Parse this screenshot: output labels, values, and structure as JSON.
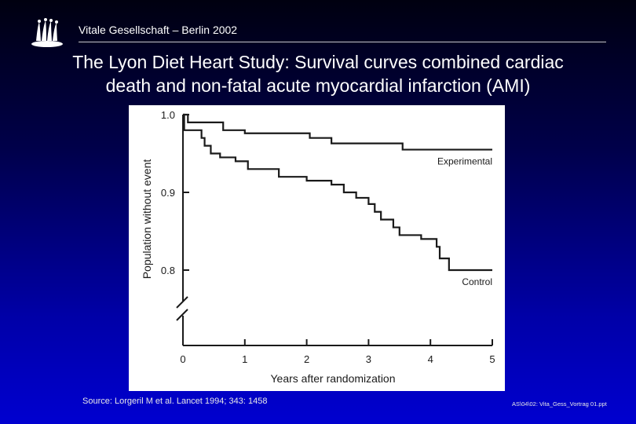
{
  "header": {
    "org": "Vitale Gesellschaft – Berlin 2002"
  },
  "title": {
    "line1": "The Lyon Diet Heart Study: Survival curves combined cardiac",
    "line2": "death and non-fatal acute myocardial infarction (AMI)"
  },
  "footer": {
    "source": "Source: Lorgeril M et al. Lancet 1994; 343: 1458",
    "fileref": "AS\\04\\02: Vita_Gess_Vortrag 01.ppt"
  },
  "colors": {
    "curve": "#1a1a1a",
    "chart_bg": "#ffffff"
  },
  "chart_data": {
    "type": "line",
    "xlabel": "Years after randomization",
    "ylabel": "Population without event",
    "x_ticks": [
      0,
      1,
      2,
      3,
      4,
      5
    ],
    "y_ticks": [
      0.8,
      0.9,
      1.0
    ],
    "y_tick_labels": [
      "0.8",
      "0.9",
      "1.0"
    ],
    "xlim": [
      0,
      5
    ],
    "ylim": [
      0.8,
      1.0
    ],
    "y_axis_break": true,
    "grid": false,
    "legend": "inline labels at right end of curves",
    "series": [
      {
        "name": "Experimental",
        "step": true,
        "points": [
          [
            0,
            1.0
          ],
          [
            0.08,
            1.0
          ],
          [
            0.08,
            0.99
          ],
          [
            0.65,
            0.99
          ],
          [
            0.65,
            0.98
          ],
          [
            1.0,
            0.98
          ],
          [
            1.0,
            0.976
          ],
          [
            2.05,
            0.976
          ],
          [
            2.05,
            0.97
          ],
          [
            2.4,
            0.97
          ],
          [
            2.4,
            0.963
          ],
          [
            3.55,
            0.963
          ],
          [
            3.55,
            0.955
          ],
          [
            5.0,
            0.955
          ]
        ]
      },
      {
        "name": "Control",
        "step": true,
        "points": [
          [
            0,
            1.0
          ],
          [
            0.02,
            0.98
          ],
          [
            0.25,
            0.98
          ],
          [
            0.3,
            0.97
          ],
          [
            0.35,
            0.96
          ],
          [
            0.45,
            0.95
          ],
          [
            0.6,
            0.945
          ],
          [
            0.85,
            0.94
          ],
          [
            1.05,
            0.93
          ],
          [
            1.5,
            0.93
          ],
          [
            1.55,
            0.92
          ],
          [
            2.0,
            0.915
          ],
          [
            2.4,
            0.91
          ],
          [
            2.6,
            0.9
          ],
          [
            2.8,
            0.893
          ],
          [
            3.0,
            0.885
          ],
          [
            3.1,
            0.875
          ],
          [
            3.2,
            0.865
          ],
          [
            3.4,
            0.855
          ],
          [
            3.5,
            0.845
          ],
          [
            3.85,
            0.84
          ],
          [
            4.1,
            0.83
          ],
          [
            4.15,
            0.815
          ],
          [
            4.3,
            0.815
          ],
          [
            4.3,
            0.8
          ],
          [
            5.0,
            0.8
          ]
        ]
      }
    ]
  }
}
